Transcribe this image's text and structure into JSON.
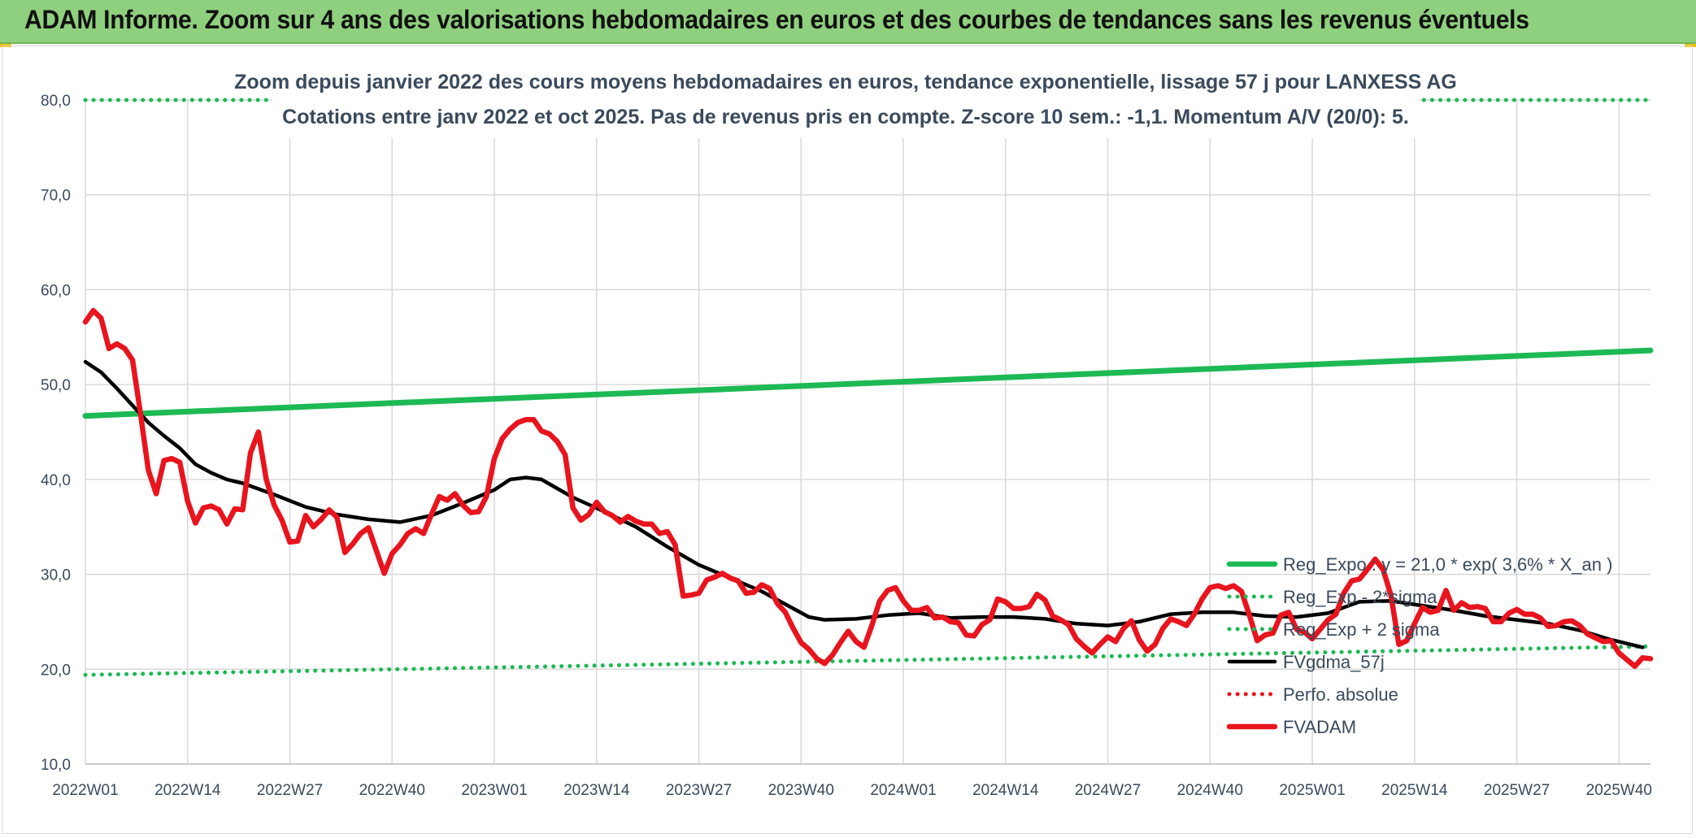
{
  "banner": {
    "title": "ADAM Informe. Zoom sur 4 ans des valorisations hebdomadaires en euros et des courbes de tendances sans les revenus éventuels"
  },
  "chart_data": {
    "type": "line",
    "title": "Zoom depuis janvier 2022 des cours moyens hebdomadaires en euros, tendance exponentielle, lissage 57 j pour LANXESS AG",
    "subtitle": "Cotations entre janv 2022 et oct 2025. Pas de revenus pris en compte. Z-score 10 sem.: -1,1. Momentum A/V (20/0): 5.",
    "xlabel": "",
    "ylabel": "",
    "ylim": [
      10,
      80
    ],
    "yticks": [
      "10,0",
      "20,0",
      "30,0",
      "40,0",
      "50,0",
      "60,0",
      "70,0",
      "80,0"
    ],
    "xticks": [
      "2022W01",
      "2022W14",
      "2022W27",
      "2022W40",
      "2023W01",
      "2023W14",
      "2023W27",
      "2023W40",
      "2024W01",
      "2024W14",
      "2024W27",
      "2024W40",
      "2025W01",
      "2025W14",
      "2025W27",
      "2025W40"
    ],
    "xtick_weeks": [
      0,
      13,
      26,
      39,
      52,
      65,
      78,
      91,
      104,
      117,
      130,
      143,
      156,
      169,
      182,
      195
    ],
    "n_weeks": 200,
    "grid": true,
    "legend_position": "bottom-right",
    "series": [
      {
        "name": "Reg_Expo : y = 21,0 * exp( 3,6% *  X_an )",
        "color": "#1db954",
        "style": "solid-thick",
        "x": [
          0,
          199
        ],
        "y": [
          46.7,
          53.6
        ]
      },
      {
        "name": "Reg_Exp - 2*sigma",
        "color": "#1db954",
        "style": "dotted",
        "x": [
          0,
          199
        ],
        "y": [
          19.4,
          22.4
        ]
      },
      {
        "name": "Reg_Exp + 2 sigma",
        "color": "#1db954",
        "style": "dotted",
        "x": [
          0,
          199
        ],
        "y": [
          80.0,
          80.0
        ]
      },
      {
        "name": "FVgdma_57j",
        "color": "#000000",
        "style": "solid",
        "x": [
          0,
          2,
          4,
          6,
          8,
          10,
          12,
          14,
          16,
          18,
          20,
          24,
          28,
          32,
          36,
          40,
          44,
          48,
          52,
          54,
          56,
          58,
          62,
          66,
          70,
          74,
          78,
          82,
          86,
          90,
          92,
          94,
          98,
          102,
          106,
          110,
          114,
          118,
          122,
          126,
          130,
          134,
          138,
          142,
          146,
          150,
          154,
          158,
          162,
          166,
          170,
          174,
          178,
          182,
          186,
          190,
          194,
          198
        ],
        "y": [
          52.4,
          51.3,
          49.6,
          47.8,
          46.0,
          44.6,
          43.3,
          41.6,
          40.7,
          40.0,
          39.6,
          38.4,
          37.1,
          36.3,
          35.8,
          35.5,
          36.2,
          37.5,
          38.9,
          40.0,
          40.2,
          40.0,
          38.1,
          36.6,
          35.0,
          32.9,
          31.0,
          29.6,
          28.2,
          26.4,
          25.5,
          25.2,
          25.3,
          25.7,
          25.9,
          25.4,
          25.5,
          25.5,
          25.3,
          24.8,
          24.6,
          25.0,
          25.8,
          26.0,
          26.0,
          25.6,
          25.5,
          25.9,
          27.1,
          27.2,
          26.7,
          26.2,
          25.6,
          25.2,
          24.8,
          24.1,
          23.1,
          22.3
        ]
      },
      {
        "name": "Perfo. absolue",
        "color": "#e31a1c",
        "style": "dotted",
        "x": [],
        "y": []
      },
      {
        "name": "FVADAM",
        "color": "#e8141e",
        "style": "solid-thick",
        "x": [
          0,
          1,
          2,
          3,
          4,
          5,
          6,
          7,
          8,
          9,
          10,
          11,
          12,
          13,
          14,
          15,
          16,
          17,
          18,
          19,
          20,
          21,
          22,
          23,
          24,
          25,
          26,
          27,
          28,
          29,
          30,
          31,
          32,
          33,
          34,
          35,
          36,
          37,
          38,
          39,
          40,
          41,
          42,
          43,
          44,
          45,
          46,
          47,
          48,
          49,
          50,
          51,
          52,
          53,
          54,
          55,
          56,
          57,
          58,
          59,
          60,
          61,
          62,
          63,
          64,
          65,
          66,
          67,
          68,
          69,
          70,
          71,
          72,
          73,
          74,
          75,
          76,
          77,
          78,
          79,
          80,
          81,
          82,
          83,
          84,
          85,
          86,
          87,
          88,
          89,
          90,
          91,
          92,
          93,
          94,
          95,
          96,
          97,
          98,
          99,
          100,
          101,
          102,
          103,
          104,
          105,
          106,
          107,
          108,
          109,
          110,
          111,
          112,
          113,
          114,
          115,
          116,
          117,
          118,
          119,
          120,
          121,
          122,
          123,
          124,
          125,
          126,
          127,
          128,
          129,
          130,
          131,
          132,
          133,
          134,
          135,
          136,
          137,
          138,
          139,
          140,
          141,
          142,
          143,
          144,
          145,
          146,
          147,
          148,
          149,
          150,
          151,
          152,
          153,
          154,
          155,
          156,
          157,
          158,
          159,
          160,
          161,
          162,
          163,
          164,
          165,
          166,
          167,
          168,
          169,
          170,
          171,
          172,
          173,
          174,
          175,
          176,
          177,
          178,
          179,
          180,
          181,
          182,
          183,
          184,
          185,
          186,
          187,
          188,
          189,
          190,
          191,
          192,
          193,
          194,
          195,
          196,
          197,
          198,
          199
        ],
        "y": [
          56.6,
          57.8,
          57.0,
          53.8,
          54.3,
          53.8,
          52.6,
          47.0,
          41.0,
          38.5,
          42.0,
          42.2,
          41.8,
          37.7,
          35.4,
          37.0,
          37.2,
          36.8,
          35.3,
          36.9,
          36.8,
          42.8,
          45.0,
          40.0,
          37.3,
          35.7,
          33.4,
          33.5,
          36.2,
          35.0,
          35.8,
          36.8,
          36.0,
          32.3,
          33.2,
          34.3,
          34.9,
          32.5,
          30.1,
          32.2,
          33.1,
          34.3,
          34.8,
          34.3,
          36.3,
          38.2,
          37.8,
          38.5,
          37.3,
          36.5,
          36.6,
          38.2,
          42.2,
          44.3,
          45.3,
          46.0,
          46.3,
          46.3,
          45.1,
          44.8,
          44.0,
          42.6,
          37.0,
          35.7,
          36.3,
          37.6,
          36.6,
          36.2,
          35.5,
          36.1,
          35.6,
          35.3,
          35.3,
          34.3,
          34.5,
          33.1,
          27.7,
          27.8,
          28.0,
          29.4,
          29.7,
          30.1,
          29.6,
          29.3,
          28.0,
          28.1,
          28.9,
          28.5,
          26.9,
          26.0,
          24.3,
          22.8,
          22.1,
          21.1,
          20.6,
          21.5,
          22.8,
          24.0,
          22.9,
          22.3,
          24.6,
          27.2,
          28.3,
          28.6,
          27.2,
          26.2,
          26.2,
          26.5,
          25.4,
          25.5,
          25.0,
          24.9,
          23.6,
          23.5,
          24.7,
          25.2,
          27.4,
          27.1,
          26.4,
          26.4,
          26.6,
          27.9,
          27.3,
          25.6,
          25.2,
          24.7,
          23.2,
          22.4,
          21.7,
          22.6,
          23.4,
          22.9,
          24.3,
          25.1,
          23.1,
          21.9,
          22.6,
          24.3,
          25.3,
          25.0,
          24.6,
          25.8,
          27.4,
          28.6,
          28.8,
          28.5,
          28.8,
          28.2,
          25.7,
          23.0,
          23.6,
          23.8,
          25.7,
          26.0,
          24.2,
          23.9,
          23.2,
          24.2,
          25.2,
          25.8,
          28.0,
          29.3,
          29.5,
          30.5,
          31.6,
          30.5,
          27.8,
          22.6,
          23.0,
          24.8,
          26.5,
          26.0,
          26.2,
          28.3,
          26.2,
          27.0,
          26.5,
          26.6,
          26.4,
          25.0,
          25.0,
          25.9,
          26.3,
          25.8,
          25.8,
          25.4,
          24.5,
          24.6,
          25.0,
          25.1,
          24.6,
          23.7,
          23.3,
          22.9,
          23.0,
          21.7,
          21.0,
          20.3,
          21.2,
          21.1
        ]
      }
    ]
  }
}
